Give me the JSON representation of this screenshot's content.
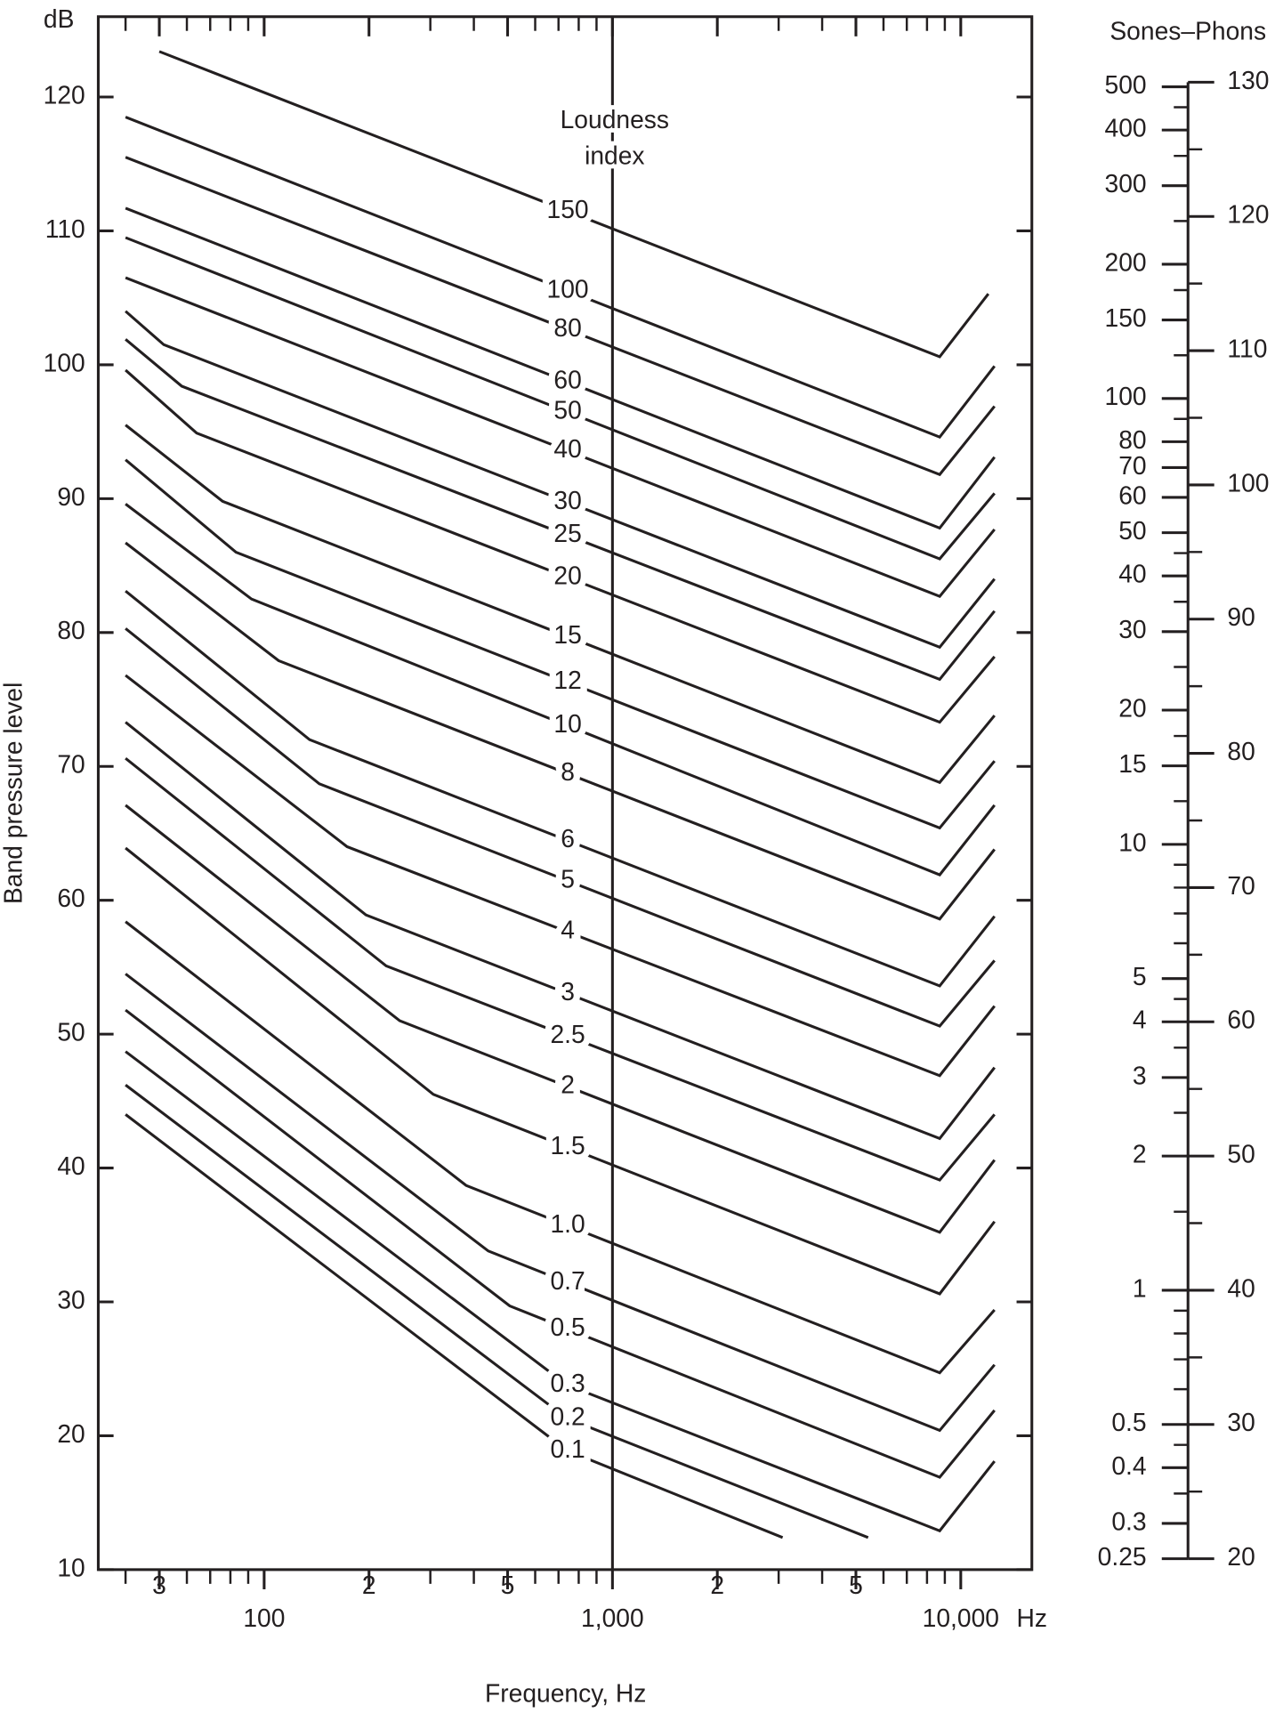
{
  "chart_data": [
    {
      "type": "line",
      "xlabel": "Frequency, Hz",
      "ylabel": "Band pressure level",
      "yunit": "dB",
      "xunit": "Hz",
      "annotation": [
        "Loudness",
        "index"
      ],
      "xlog": true,
      "xlim": [
        33.4,
        16000
      ],
      "ylim": [
        10,
        126
      ],
      "xticks": [
        {
          "value": 50,
          "label": "3"
        },
        100,
        {
          "value": 200,
          "label": "2"
        },
        {
          "value": 500,
          "label": "5"
        },
        {
          "value": 1000,
          "label": "1,000"
        },
        {
          "value": 2000,
          "label": "2"
        },
        {
          "value": 5000,
          "label": "5"
        },
        {
          "value": 10000,
          "label": "10,000"
        }
      ],
      "xminorticks": [
        40,
        60,
        70,
        80,
        90,
        300,
        400,
        600,
        700,
        800,
        900,
        3000,
        4000,
        6000,
        7000,
        8000,
        9000
      ],
      "yticks": [
        10,
        20,
        30,
        40,
        50,
        60,
        70,
        80,
        90,
        100,
        110,
        120
      ],
      "reference_x": 1000,
      "color": "#231f20",
      "series": [
        {
          "name": "150",
          "x": [
            50,
            8700,
            12000
          ],
          "values": [
            123.4,
            100.6,
            105.3
          ]
        },
        {
          "name": "100",
          "x": [
            40,
            8700,
            12500
          ],
          "values": [
            118.5,
            94.6,
            99.9
          ]
        },
        {
          "name": "80",
          "x": [
            40,
            8700,
            12500
          ],
          "values": [
            115.5,
            91.8,
            96.9
          ]
        },
        {
          "name": "60",
          "x": [
            40,
            8700,
            12500
          ],
          "values": [
            111.7,
            87.8,
            93.1
          ]
        },
        {
          "name": "50",
          "x": [
            40,
            8700,
            12500
          ],
          "values": [
            109.5,
            85.5,
            90.4
          ]
        },
        {
          "name": "40",
          "x": [
            40,
            8700,
            12500
          ],
          "values": [
            106.5,
            82.7,
            87.7
          ]
        },
        {
          "name": "30",
          "x": [
            40,
            51.5,
            8700,
            12500
          ],
          "values": [
            104.0,
            101.5,
            78.9,
            84.0
          ]
        },
        {
          "name": "25",
          "x": [
            40,
            58,
            8700,
            12500
          ],
          "values": [
            101.9,
            98.4,
            76.5,
            81.6
          ]
        },
        {
          "name": "20",
          "x": [
            40,
            64,
            8700,
            12500
          ],
          "values": [
            99.6,
            94.9,
            73.3,
            78.2
          ]
        },
        {
          "name": "15",
          "x": [
            40,
            76,
            8700,
            12500
          ],
          "values": [
            95.5,
            89.8,
            68.8,
            73.8
          ]
        },
        {
          "name": "12",
          "x": [
            40,
            83,
            8700,
            12500
          ],
          "values": [
            92.9,
            86.0,
            65.4,
            70.4
          ]
        },
        {
          "name": "10",
          "x": [
            40,
            92,
            8700,
            12500
          ],
          "values": [
            89.6,
            82.5,
            61.9,
            67.1
          ]
        },
        {
          "name": "8",
          "x": [
            40,
            110,
            8700,
            12500
          ],
          "values": [
            86.7,
            77.9,
            58.6,
            63.8
          ]
        },
        {
          "name": "6",
          "x": [
            40,
            135,
            8700,
            12500
          ],
          "values": [
            83.1,
            72.0,
            53.6,
            58.8
          ]
        },
        {
          "name": "5",
          "x": [
            40,
            144,
            8700,
            12500
          ],
          "values": [
            80.3,
            68.7,
            50.6,
            55.5
          ]
        },
        {
          "name": "4",
          "x": [
            40,
            173,
            8700,
            12500
          ],
          "values": [
            76.8,
            64.0,
            46.9,
            52.1
          ]
        },
        {
          "name": "3",
          "x": [
            40,
            196,
            8700,
            12500
          ],
          "values": [
            73.3,
            58.9,
            42.2,
            47.5
          ]
        },
        {
          "name": "2.5",
          "x": [
            40,
            224,
            8700,
            12500
          ],
          "values": [
            70.6,
            55.1,
            39.1,
            44.0
          ]
        },
        {
          "name": "2",
          "x": [
            40,
            245,
            8700,
            12500
          ],
          "values": [
            67.1,
            51.0,
            35.2,
            40.6
          ]
        },
        {
          "name": "1.5",
          "x": [
            40,
            306,
            8700,
            12500
          ],
          "values": [
            63.9,
            45.5,
            30.6,
            36.0
          ]
        },
        {
          "name": "1.0",
          "x": [
            40,
            380,
            8700,
            12500
          ],
          "values": [
            58.4,
            38.7,
            24.7,
            29.4
          ]
        },
        {
          "name": "0.7",
          "x": [
            40,
            440,
            8700,
            12500
          ],
          "values": [
            54.5,
            33.8,
            20.4,
            25.3
          ]
        },
        {
          "name": "0.5",
          "x": [
            40,
            507,
            8700,
            12500
          ],
          "values": [
            51.8,
            29.7,
            16.9,
            21.9
          ]
        },
        {
          "name": "0.3",
          "x": [
            40,
            740,
            8700,
            12500
          ],
          "values": [
            48.7,
            23.8,
            12.9,
            18.1
          ]
        },
        {
          "name": "0.2",
          "x": [
            40,
            740,
            5420
          ],
          "values": [
            46.2,
            21.3,
            12.4
          ]
        },
        {
          "name": "0.1",
          "x": [
            40,
            740,
            3080
          ],
          "values": [
            44.0,
            18.9,
            12.4
          ]
        }
      ]
    },
    {
      "type": "scale",
      "title": "Sones–Phons",
      "ylog": true,
      "ylim": [
        0.25,
        512
      ],
      "yticks": [
        500,
        400,
        300,
        200,
        150,
        100,
        80,
        70,
        60,
        50,
        40,
        30,
        20,
        15,
        10,
        5,
        4,
        3,
        2,
        1,
        0.5,
        0.4,
        0.3,
        0.25
      ],
      "yminorticks": [
        450,
        350,
        250,
        175,
        125,
        90,
        45,
        35,
        25,
        17.5,
        12.5,
        9,
        8,
        7,
        6,
        4.5,
        3.5,
        2.5,
        1.5,
        0.9,
        0.8,
        0.7,
        0.6,
        0.45,
        0.35
      ],
      "y2lim": [
        20,
        130
      ],
      "y2ticks": [
        130,
        120,
        110,
        100,
        90,
        80,
        70,
        60,
        50,
        40,
        30,
        20
      ],
      "y2minorticks": [
        125,
        115,
        105,
        95,
        85,
        75,
        65,
        55,
        45,
        35,
        25
      ],
      "color": "#231f20"
    }
  ]
}
